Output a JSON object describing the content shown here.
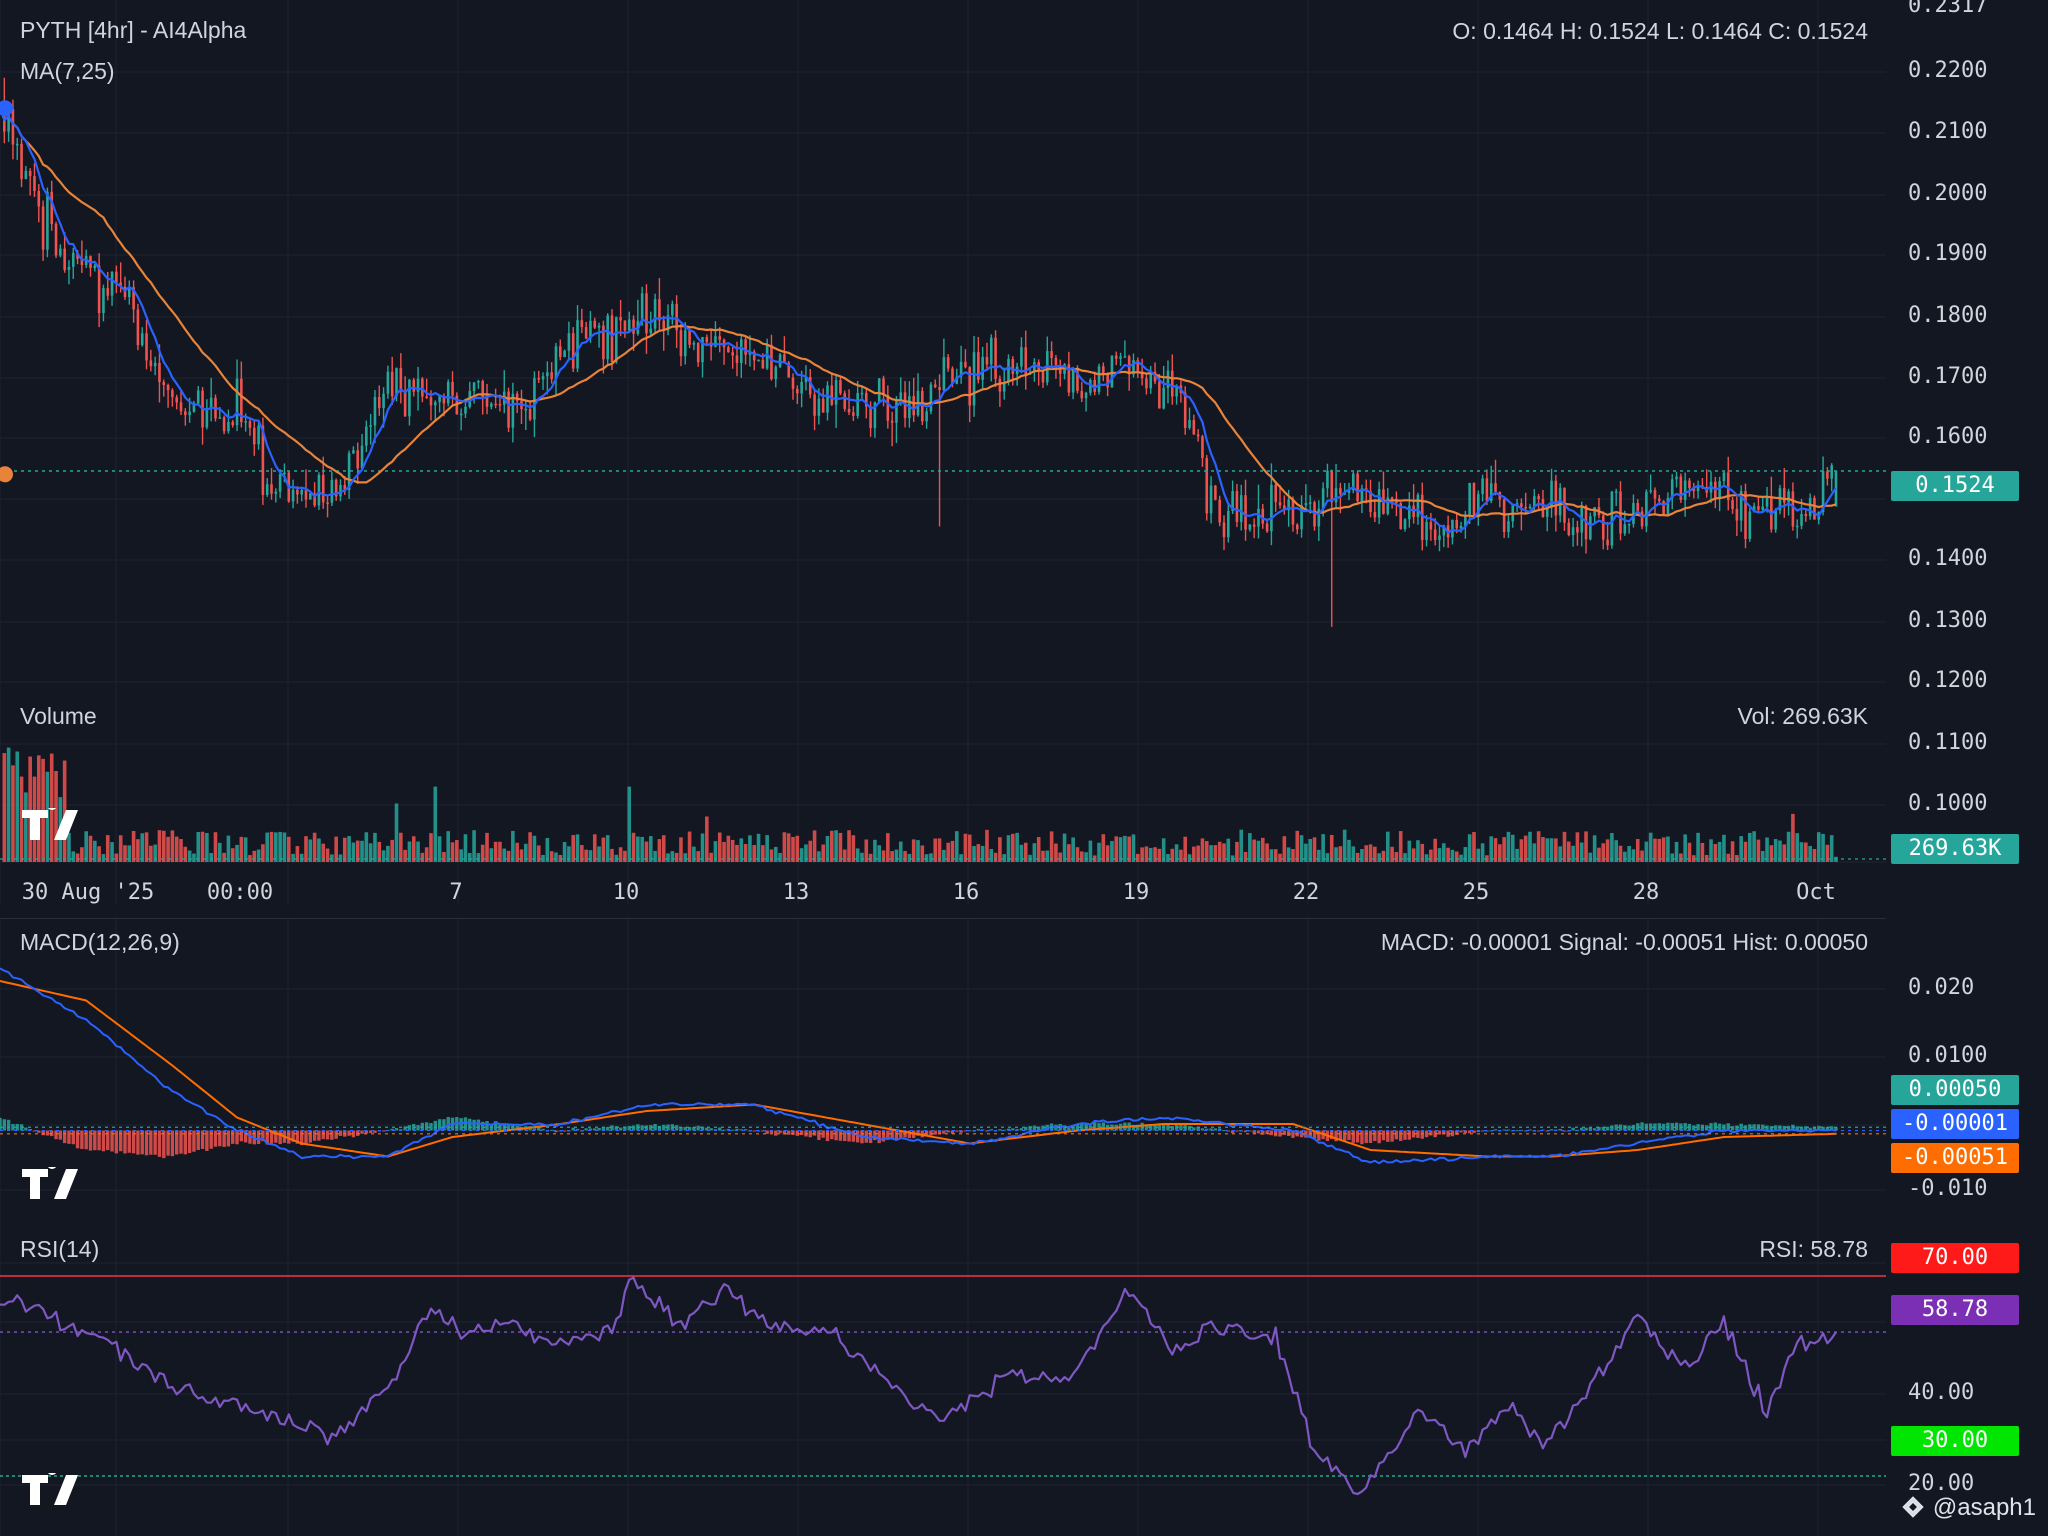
{
  "header": {
    "title": "PYTH [4hr] - AI4Alpha",
    "ma_label": "MA(7,25)",
    "ohlc": "O: 0.1464 H: 0.1524 L: 0.1464 C: 0.1524",
    "volume_label": "Volume",
    "volume_readout": "Vol: 269.63K",
    "macd_label": "MACD(12,26,9)",
    "macd_readout": "MACD: -0.00001 Signal: -0.00051 Hist: 0.00050",
    "rsi_label": "RSI(14)",
    "rsi_readout": "RSI: 58.78",
    "credit": "@asaph1"
  },
  "tags": {
    "price": "0.1524",
    "volume": "269.63K",
    "hist": "0.00050",
    "macd": "-0.00001",
    "signal": "-0.00051",
    "rsi_upper": "70.00",
    "rsi_value": "58.78",
    "rsi_lower": "30.00"
  },
  "colors": {
    "background": "#131722",
    "grid": "#1f2331",
    "up": "#26a69a",
    "down": "#ef5350",
    "ma_fast": "#2962ff",
    "ma_slow": "#e8833a",
    "macd_line": "#2962ff",
    "signal_line": "#ff6d00",
    "rsi_line": "#7e57c2",
    "rsi_upper": "#f23645",
    "rsi_lower": "#22ab94",
    "rsi_tag_upper": "#ff1a1a",
    "rsi_tag_value": "#7b2fb5",
    "rsi_tag_lower": "#00e600",
    "price_tag": "#26a69a",
    "macd_tag": "#2962ff",
    "signal_tag": "#ff6d00"
  },
  "icons": {
    "watermark": "tradingview-logo-icon",
    "credit": "binance-logo-icon"
  },
  "chart_data": [
    {
      "type": "candlestick",
      "title": "PYTH [4hr] - AI4Alpha",
      "x_ticks": [
        "30 Aug '25",
        "00:00",
        "7",
        "10",
        "13",
        "16",
        "19",
        "22",
        "25",
        "28",
        "Oct"
      ],
      "y_ticks": [
        "0.2317",
        "0.2200",
        "0.2100",
        "0.2000",
        "0.1900",
        "0.1800",
        "0.1700",
        "0.1600",
        "0.1400",
        "0.1300",
        "0.1200",
        "0.1100",
        "0.1000"
      ],
      "ylim": [
        0.096,
        0.232
      ],
      "last_close": 0.1524,
      "ohlc_last": {
        "open": 0.1464,
        "high": 0.1524,
        "low": 0.1464,
        "close": 0.1524
      },
      "close_path": [
        [
          0,
          0.215
        ],
        [
          12,
          0.192
        ],
        [
          28,
          0.182
        ],
        [
          40,
          0.165
        ],
        [
          55,
          0.162
        ],
        [
          63,
          0.15
        ],
        [
          78,
          0.148
        ],
        [
          90,
          0.166
        ],
        [
          108,
          0.166
        ],
        [
          120,
          0.162
        ],
        [
          135,
          0.176
        ],
        [
          150,
          0.178
        ],
        [
          162,
          0.174
        ],
        [
          180,
          0.17
        ],
        [
          198,
          0.163
        ],
        [
          210,
          0.162
        ],
        [
          225,
          0.17
        ],
        [
          240,
          0.172
        ],
        [
          250,
          0.168
        ],
        [
          262,
          0.17
        ],
        [
          274,
          0.165
        ],
        [
          282,
          0.146
        ],
        [
          300,
          0.148
        ],
        [
          315,
          0.15
        ],
        [
          330,
          0.143
        ],
        [
          345,
          0.148
        ],
        [
          360,
          0.147
        ],
        [
          375,
          0.143
        ],
        [
          390,
          0.149
        ],
        [
          405,
          0.147
        ],
        [
          420,
          0.145
        ],
        [
          426,
          0.1524
        ]
      ],
      "wick_extremes": [
        {
          "bar": 1,
          "high": 0.219
        },
        {
          "bar": 218,
          "low": 0.143
        },
        {
          "bar": 309,
          "low": 0.126
        }
      ],
      "ma_labels": [
        "MA(7,25)"
      ],
      "volume": {
        "last": 269.63,
        "unit": "K",
        "spikes": [
          {
            "bar": 2,
            "rel": 0.88
          },
          {
            "bar": 9,
            "rel": 0.82
          },
          {
            "bar": 13,
            "rel": 0.7
          },
          {
            "bar": 92,
            "rel": 0.45
          },
          {
            "bar": 101,
            "rel": 0.58
          },
          {
            "bar": 146,
            "rel": 0.58
          },
          {
            "bar": 164,
            "rel": 0.35
          },
          {
            "bar": 416,
            "rel": 0.37
          }
        ]
      }
    },
    {
      "type": "macd",
      "title": "MACD(12,26,9)",
      "y_ticks": [
        "0.020",
        "0.0100",
        "-0.010"
      ],
      "ylim": [
        -0.013,
        0.027
      ],
      "macd": -1e-05,
      "signal": -0.00051,
      "hist": 0.0005,
      "macd_path": [
        [
          0,
          0.025
        ],
        [
          20,
          0.017
        ],
        [
          40,
          0.006
        ],
        [
          55,
          0.0
        ],
        [
          70,
          -0.004
        ],
        [
          90,
          -0.004
        ],
        [
          105,
          0.001
        ],
        [
          130,
          0.001
        ],
        [
          150,
          0.004
        ],
        [
          175,
          0.004
        ],
        [
          200,
          -0.001
        ],
        [
          225,
          -0.002
        ],
        [
          250,
          0.001
        ],
        [
          270,
          0.002
        ],
        [
          300,
          0.0
        ],
        [
          318,
          -0.005
        ],
        [
          345,
          -0.004
        ],
        [
          360,
          -0.004
        ],
        [
          380,
          -0.002
        ],
        [
          400,
          0.0
        ],
        [
          426,
          -1e-05
        ]
      ],
      "signal_path": [
        [
          0,
          0.023
        ],
        [
          20,
          0.02
        ],
        [
          40,
          0.01
        ],
        [
          55,
          0.002
        ],
        [
          70,
          -0.002
        ],
        [
          90,
          -0.004
        ],
        [
          105,
          -0.001
        ],
        [
          130,
          0.001
        ],
        [
          150,
          0.003
        ],
        [
          175,
          0.004
        ],
        [
          200,
          0.001
        ],
        [
          225,
          -0.002
        ],
        [
          250,
          0.0
        ],
        [
          270,
          0.001
        ],
        [
          300,
          0.001
        ],
        [
          318,
          -0.003
        ],
        [
          345,
          -0.004
        ],
        [
          360,
          -0.004
        ],
        [
          380,
          -0.003
        ],
        [
          400,
          -0.001
        ],
        [
          426,
          -0.00051
        ]
      ]
    },
    {
      "type": "line",
      "title": "RSI(14)",
      "y_ticks": [
        "40.00",
        "20.00"
      ],
      "ylim": [
        18,
        78
      ],
      "levels": [
        70,
        30
      ],
      "last": 58.78,
      "rsi_path": [
        [
          0,
          66
        ],
        [
          12,
          62
        ],
        [
          25,
          57
        ],
        [
          40,
          48
        ],
        [
          55,
          44
        ],
        [
          70,
          40
        ],
        [
          78,
          38
        ],
        [
          90,
          48
        ],
        [
          100,
          63
        ],
        [
          108,
          59
        ],
        [
          118,
          61
        ],
        [
          128,
          56
        ],
        [
          142,
          59
        ],
        [
          146,
          69
        ],
        [
          158,
          60
        ],
        [
          168,
          68
        ],
        [
          178,
          60
        ],
        [
          195,
          58
        ],
        [
          210,
          46
        ],
        [
          218,
          41
        ],
        [
          235,
          51
        ],
        [
          248,
          49
        ],
        [
          262,
          68
        ],
        [
          272,
          54
        ],
        [
          280,
          60
        ],
        [
          296,
          58
        ],
        [
          305,
          35
        ],
        [
          315,
          26
        ],
        [
          330,
          44
        ],
        [
          340,
          35
        ],
        [
          350,
          44
        ],
        [
          358,
          36
        ],
        [
          368,
          46
        ],
        [
          380,
          62
        ],
        [
          390,
          51
        ],
        [
          400,
          61
        ],
        [
          410,
          42
        ],
        [
          416,
          56
        ],
        [
          426,
          58.78
        ]
      ]
    }
  ]
}
